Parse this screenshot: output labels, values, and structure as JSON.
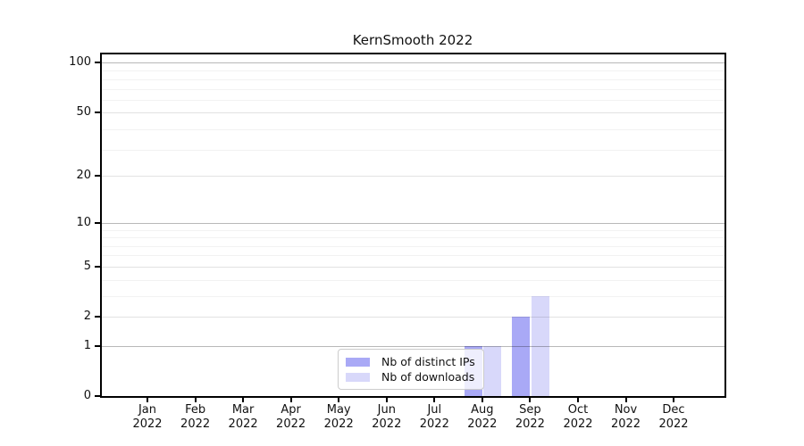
{
  "title": "KernSmooth 2022",
  "chart_data": {
    "type": "bar",
    "title": "KernSmooth 2022",
    "x_year": "2022",
    "categories": [
      "Jan",
      "Feb",
      "Mar",
      "Apr",
      "May",
      "Jun",
      "Jul",
      "Aug",
      "Sep",
      "Oct",
      "Nov",
      "Dec"
    ],
    "series": [
      {
        "name": "Nb of distinct IPs",
        "color": "#a9a9f6",
        "values": [
          0,
          0,
          0,
          0,
          0,
          0,
          0,
          1,
          2,
          0,
          0,
          0
        ]
      },
      {
        "name": "Nb of downloads",
        "color": "#d8d8fa",
        "values": [
          0,
          0,
          0,
          0,
          0,
          0,
          0,
          1,
          3,
          0,
          0,
          0
        ]
      }
    ],
    "yscale": "log1p",
    "ylim": [
      0,
      112
    ],
    "yticks": [
      0,
      1,
      2,
      5,
      10,
      20,
      50,
      100
    ],
    "yticks_decade": [
      1,
      10,
      100
    ],
    "yticks_minor": [
      3,
      4,
      6,
      7,
      8,
      9,
      29,
      39,
      59,
      69,
      79,
      89
    ],
    "grid": true,
    "legend_position": "lower-center"
  }
}
